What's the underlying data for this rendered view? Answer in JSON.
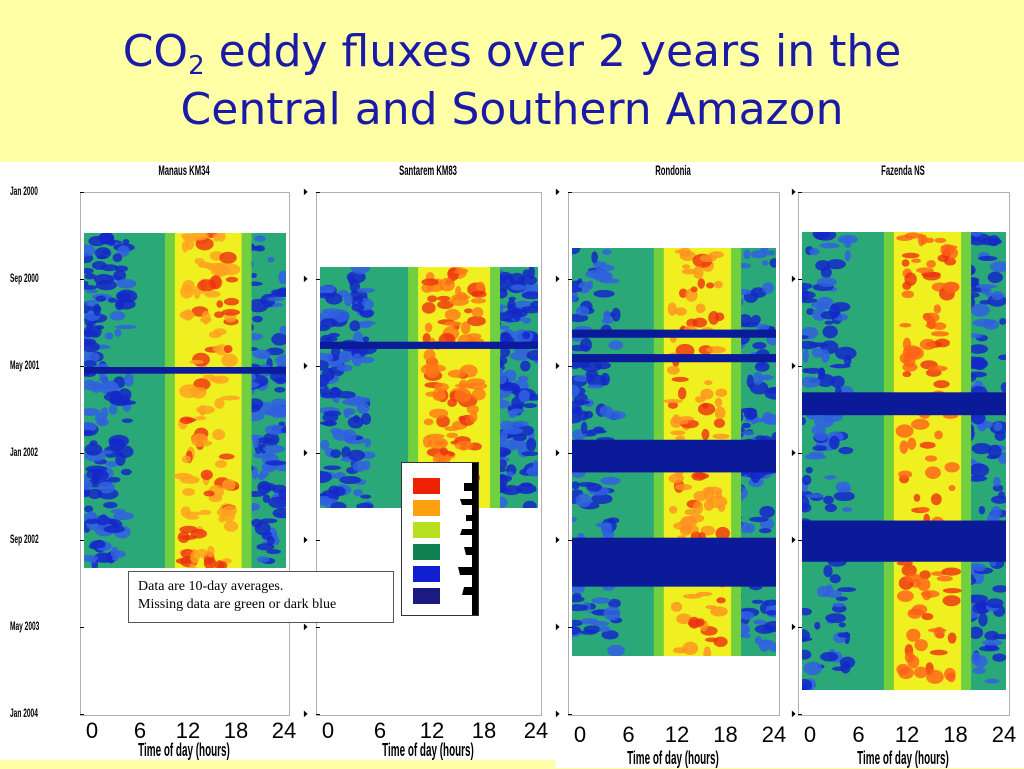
{
  "slide": {
    "title_part1": "CO",
    "title_sub": "2",
    "title_part2": " eddy fluxes over 2 years in the",
    "title_line2": "Central and Southern Amazon"
  },
  "note": {
    "line1": "Data are 10-day averages.",
    "line2": "Missing data are green or dark blue"
  },
  "legend": {
    "colors": [
      "#ee2200",
      "#ffa010",
      "#b8e020",
      "#108050",
      "#1020d0",
      "#1a1a80"
    ]
  },
  "chart_data": [
    {
      "type": "heatmap",
      "title": "Manaus KM34",
      "xlabel": "Time of day (hours)",
      "x_ticks": [
        "0",
        "6",
        "12",
        "18",
        "24"
      ],
      "y_ticks": [
        "Jan 2000",
        "Sep 2000",
        "May 2001",
        "Jan 2002",
        "Sep 2002",
        "May 2003",
        "Jan 2004"
      ],
      "colors": {
        "background": "#2aa878",
        "night": "#1428c8",
        "day_core": "#f0f020",
        "day_peak": "#ffa020",
        "gap": "#0c1a9c"
      }
    },
    {
      "type": "heatmap",
      "title": "Santarem KM83",
      "xlabel": "Time of day (hours)",
      "x_ticks": [
        "0",
        "6",
        "12",
        "18",
        "24"
      ],
      "y_ticks": [
        "",
        "",
        "",
        "",
        "",
        "",
        ""
      ],
      "colors": {
        "background": "#2aa878",
        "night": "#1428c8",
        "day_core": "#f0f020",
        "day_peak": "#ff7818",
        "gap": "#0c1a9c"
      }
    },
    {
      "type": "heatmap",
      "title": "Rondonia",
      "xlabel": "Time of day (hours)",
      "x_ticks": [
        "0",
        "6",
        "12",
        "18",
        "24"
      ],
      "y_ticks": [
        "",
        "",
        "",
        "",
        "",
        "",
        ""
      ],
      "colors": {
        "background": "#2aa878",
        "night": "#1428c8",
        "day_core": "#f0f020",
        "day_peak": "#ff9020",
        "gap": "#0a1a98"
      }
    },
    {
      "type": "heatmap",
      "title": "Fazenda NS",
      "xlabel": "Time of day (hours)",
      "x_ticks": [
        "0",
        "6",
        "12",
        "18",
        "24"
      ],
      "y_ticks": [
        "",
        "",
        "",
        "",
        "",
        "",
        ""
      ],
      "colors": {
        "background": "#2aa878",
        "night": "#1428c8",
        "day_core": "#f0f020",
        "day_peak": "#ff6018",
        "gap": "#0a1a98"
      }
    }
  ]
}
